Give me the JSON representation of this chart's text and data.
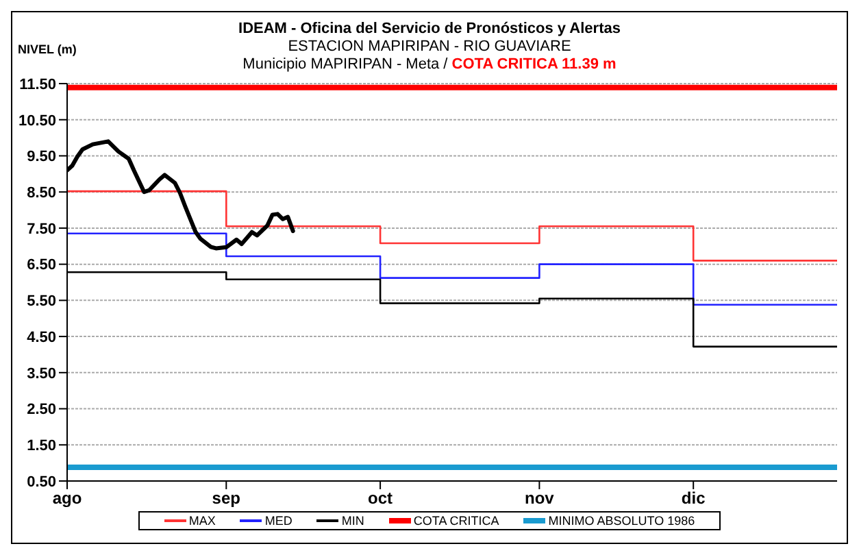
{
  "chart_data": {
    "type": "line",
    "title": "IDEAM - Oficina del Servicio de Pronósticos y Alertas",
    "subtitle": "ESTACION MAPIRIPAN - RIO GUAVIARE",
    "annotations": [
      "Municipio MAPIRIPAN - Meta / ",
      "COTA CRITICA 11.39 m"
    ],
    "ylabel": "NIVEL (m)",
    "xlim": [
      "--08-01",
      "--12-29"
    ],
    "xticks": [
      {
        "value": "--08-01",
        "label": "ago"
      },
      {
        "value": "--09-01",
        "label": "sep"
      },
      {
        "value": "--10-01",
        "label": "oct"
      },
      {
        "value": "--11-01",
        "label": "nov"
      },
      {
        "value": "--12-01",
        "label": "dic"
      }
    ],
    "ylim": [
      0.5,
      11.5
    ],
    "yticks": [
      {
        "value": 0.5,
        "label": "0.50"
      },
      {
        "value": 1.5,
        "label": "1.50"
      },
      {
        "value": 2.5,
        "label": "2.50"
      },
      {
        "value": 3.5,
        "label": "3.50"
      },
      {
        "value": 4.5,
        "label": "4.50"
      },
      {
        "value": 5.5,
        "label": "5.50"
      },
      {
        "value": 6.5,
        "label": "6.50"
      },
      {
        "value": 7.5,
        "label": "7.50"
      },
      {
        "value": 8.5,
        "label": "8.50"
      },
      {
        "value": 9.5,
        "label": "9.50"
      },
      {
        "value": 10.5,
        "label": "10.50"
      },
      {
        "value": 11.5,
        "label": "11.50"
      }
    ],
    "grid": "y",
    "legend": "bottom",
    "series": [
      {
        "name": "MAX",
        "type": "step",
        "color": "#ff3333",
        "x": [
          "--08-01",
          "--09-01",
          "--10-01",
          "--11-01",
          "--12-01",
          "--12-29"
        ],
        "values": [
          8.52,
          7.55,
          7.08,
          7.55,
          6.6,
          6.6
        ]
      },
      {
        "name": "MED",
        "type": "step",
        "color": "#2222ff",
        "x": [
          "--08-01",
          "--09-01",
          "--10-01",
          "--11-01",
          "--12-01",
          "--12-29"
        ],
        "values": [
          7.35,
          6.72,
          6.12,
          6.5,
          5.38,
          5.38
        ]
      },
      {
        "name": "MIN",
        "type": "step",
        "color": "#000000",
        "x": [
          "--08-01",
          "--09-01",
          "--10-01",
          "--11-01",
          "--12-01",
          "--12-29"
        ],
        "values": [
          6.28,
          6.08,
          5.42,
          5.55,
          4.22,
          4.22
        ]
      },
      {
        "name": "COTA CRITICA",
        "type": "line",
        "color": "#ff0000",
        "x": [
          "--08-01",
          "--12-29"
        ],
        "values": [
          11.39,
          11.39
        ]
      },
      {
        "name": "MINIMO ABSOLUTO 1986",
        "type": "line",
        "color": "#1a9bd0",
        "x": [
          "--08-01",
          "--12-29"
        ],
        "values": [
          0.88,
          0.88
        ]
      },
      {
        "type": "line",
        "color": "#000000",
        "x": [
          "--08-01",
          "--08-02",
          "--08-03",
          "--08-04",
          "--08-06",
          "--08-09",
          "--08-11",
          "--08-13",
          "--08-14",
          "--08-16",
          "--08-17",
          "--08-19",
          "--08-20",
          "--08-22",
          "--08-23",
          "--08-24",
          "--08-26",
          "--08-27",
          "--08-29",
          "--08-30",
          "--09-01",
          "--09-03",
          "--09-04",
          "--09-06",
          "--09-07",
          "--09-09",
          "--09-10",
          "--09-11",
          "--09-12",
          "--09-13",
          "--09-14"
        ],
        "values": [
          9.1,
          9.23,
          9.48,
          9.68,
          9.82,
          9.9,
          9.62,
          9.42,
          9.1,
          8.5,
          8.55,
          8.85,
          8.97,
          8.75,
          8.47,
          8.1,
          7.4,
          7.2,
          6.98,
          6.94,
          6.97,
          7.18,
          7.06,
          7.39,
          7.3,
          7.57,
          7.87,
          7.89,
          7.75,
          7.81,
          7.42
        ]
      }
    ]
  }
}
